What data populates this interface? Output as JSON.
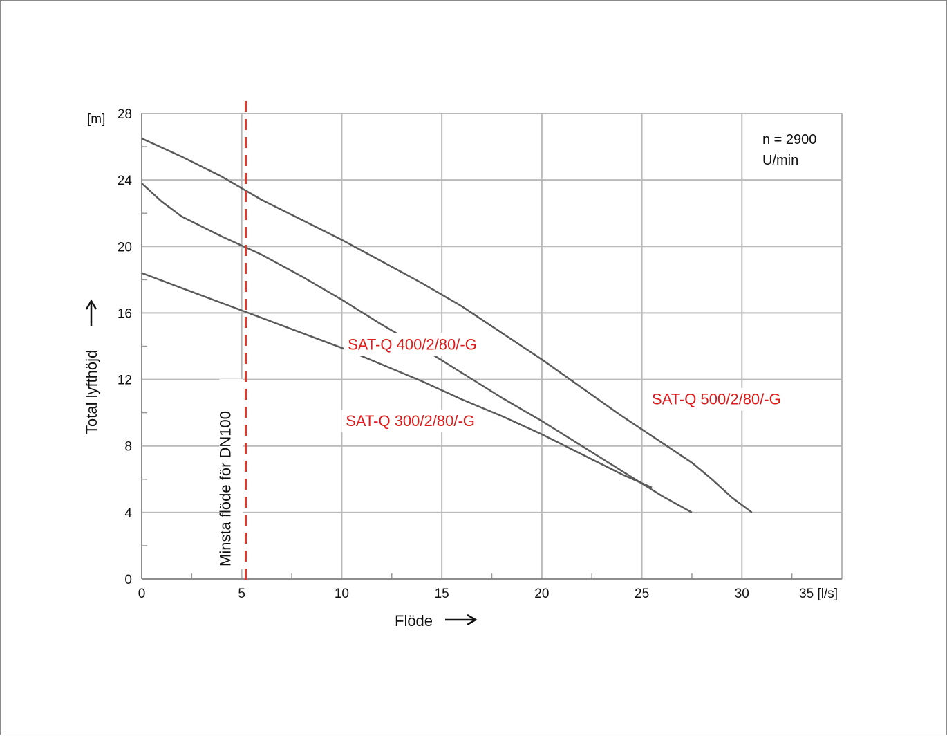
{
  "chart_data": {
    "type": "line",
    "xlabel": "Flöde",
    "xunit": "35 [l/s]",
    "ylabel": "Total lyfthöjd",
    "yunit": "[m]",
    "xlim": [
      0,
      35
    ],
    "ylim": [
      0,
      28
    ],
    "x_ticks": [
      "0",
      "5",
      "10",
      "15",
      "20",
      "25",
      "30"
    ],
    "y_ticks": [
      "0",
      "4",
      "8",
      "12",
      "16",
      "20",
      "24",
      "28"
    ],
    "grid": true,
    "speed_note_line1": "n = 2900",
    "speed_note_line2": "U/min",
    "min_flow_label": "Minsta flöde för DN100",
    "min_flow_x": 5.2,
    "min_flow_color": "#e0392b",
    "series_color": "#5a5a5a",
    "label_color": "#e01a1a",
    "series": [
      {
        "name": "SAT-Q 500/2/80/-G",
        "points": [
          [
            0,
            26.5
          ],
          [
            2,
            25.4
          ],
          [
            4,
            24.2
          ],
          [
            6,
            22.8
          ],
          [
            8,
            21.6
          ],
          [
            10,
            20.4
          ],
          [
            12,
            19.1
          ],
          [
            14,
            17.8
          ],
          [
            16,
            16.4
          ],
          [
            18,
            14.8
          ],
          [
            20,
            13.2
          ],
          [
            22,
            11.5
          ],
          [
            24,
            9.8
          ],
          [
            26,
            8.2
          ],
          [
            27.5,
            7.0
          ],
          [
            28.5,
            6.0
          ],
          [
            29.5,
            4.9
          ],
          [
            30.5,
            4.0
          ]
        ]
      },
      {
        "name": "SAT-Q 400/2/80/-G",
        "points": [
          [
            0,
            23.8
          ],
          [
            1,
            22.7
          ],
          [
            2,
            21.8
          ],
          [
            3,
            21.2
          ],
          [
            4,
            20.6
          ],
          [
            6,
            19.5
          ],
          [
            8,
            18.2
          ],
          [
            10,
            16.8
          ],
          [
            12,
            15.3
          ],
          [
            14,
            13.9
          ],
          [
            16,
            12.4
          ],
          [
            18,
            10.9
          ],
          [
            20,
            9.5
          ],
          [
            22,
            8.0
          ],
          [
            24,
            6.5
          ],
          [
            26,
            5.0
          ],
          [
            27.5,
            4.0
          ]
        ]
      },
      {
        "name": "SAT-Q 300/2/80/-G",
        "points": [
          [
            0,
            18.4
          ],
          [
            2,
            17.5
          ],
          [
            4,
            16.6
          ],
          [
            6,
            15.7
          ],
          [
            8,
            14.8
          ],
          [
            10,
            13.9
          ],
          [
            12,
            12.9
          ],
          [
            14,
            11.9
          ],
          [
            16,
            10.8
          ],
          [
            18,
            9.8
          ],
          [
            20,
            8.7
          ],
          [
            22,
            7.5
          ],
          [
            24,
            6.3
          ],
          [
            25.5,
            5.5
          ]
        ]
      }
    ],
    "series_label_anchors": [
      {
        "x": 25.5,
        "y": 10.5
      },
      {
        "x": 10.3,
        "y": 13.8
      },
      {
        "x": 10.2,
        "y": 9.2
      }
    ]
  }
}
